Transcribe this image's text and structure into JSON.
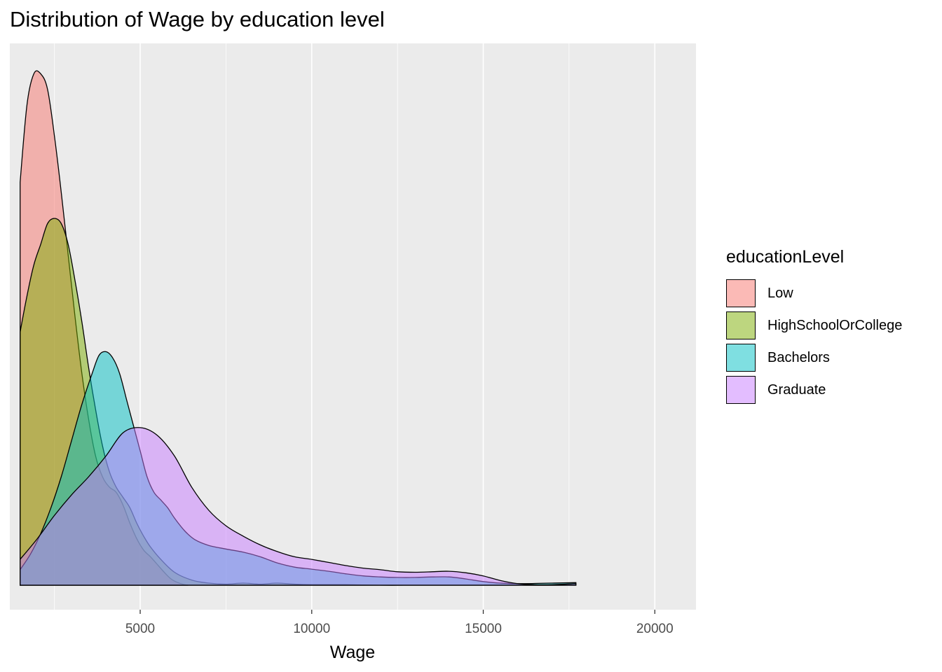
{
  "chart_data": {
    "type": "area",
    "title": "Distribution of Wage by education level",
    "xlabel": "Wage",
    "ylabel": "",
    "xlim": [
      1200,
      21200
    ],
    "ylim": [
      0,
      1
    ],
    "x_ticks": [
      5000,
      10000,
      15000,
      20000
    ],
    "x_tick_labels": [
      "5000",
      "10000",
      "15000",
      "20000"
    ],
    "y_tick_labels": [],
    "grid": true,
    "legend": {
      "title": "educationLevel",
      "position": "right"
    },
    "series": [
      {
        "name": "Low",
        "color": "#F8766D",
        "points": [
          [
            1500,
            0.78
          ],
          [
            1700,
            0.93
          ],
          [
            1900,
            0.99
          ],
          [
            2100,
            0.99
          ],
          [
            2300,
            0.96
          ],
          [
            2500,
            0.87
          ],
          [
            2700,
            0.76
          ],
          [
            2900,
            0.64
          ],
          [
            3100,
            0.52
          ],
          [
            3300,
            0.41
          ],
          [
            3500,
            0.32
          ],
          [
            3700,
            0.25
          ],
          [
            3900,
            0.21
          ],
          [
            4100,
            0.19
          ],
          [
            4300,
            0.18
          ],
          [
            4500,
            0.155
          ],
          [
            4700,
            0.12
          ],
          [
            4900,
            0.09
          ],
          [
            5100,
            0.068
          ],
          [
            5300,
            0.055
          ],
          [
            5500,
            0.04
          ],
          [
            5700,
            0.025
          ],
          [
            5900,
            0.012
          ],
          [
            6100,
            0.005
          ],
          [
            6300,
            0.001
          ],
          [
            6400,
            0
          ]
        ]
      },
      {
        "name": "HighSchoolOrCollege",
        "color": "#7CAE00",
        "points": [
          [
            1500,
            0.49
          ],
          [
            1700,
            0.56
          ],
          [
            1900,
            0.62
          ],
          [
            2100,
            0.66
          ],
          [
            2300,
            0.7
          ],
          [
            2500,
            0.71
          ],
          [
            2700,
            0.7
          ],
          [
            2900,
            0.66
          ],
          [
            3100,
            0.59
          ],
          [
            3300,
            0.51
          ],
          [
            3500,
            0.42
          ],
          [
            3700,
            0.34
          ],
          [
            3900,
            0.27
          ],
          [
            4100,
            0.22
          ],
          [
            4300,
            0.19
          ],
          [
            4500,
            0.17
          ],
          [
            4700,
            0.15
          ],
          [
            4900,
            0.12
          ],
          [
            5100,
            0.095
          ],
          [
            5300,
            0.074
          ],
          [
            5600,
            0.05
          ],
          [
            6000,
            0.025
          ],
          [
            6500,
            0.01
          ],
          [
            7000,
            0.004
          ],
          [
            7500,
            0.002
          ],
          [
            8000,
            0.004
          ],
          [
            8500,
            0.002
          ],
          [
            9000,
            0.004
          ],
          [
            9500,
            0.002
          ],
          [
            10000,
            0.001
          ],
          [
            11000,
            0.001
          ],
          [
            12000,
            0
          ],
          [
            13000,
            0
          ],
          [
            14000,
            0
          ],
          [
            15000,
            0
          ],
          [
            16000,
            0
          ],
          [
            17000,
            0
          ],
          [
            17700,
            0
          ]
        ]
      },
      {
        "name": "Bachelors",
        "color": "#00BFC4",
        "points": [
          [
            1500,
            0.03
          ],
          [
            1800,
            0.06
          ],
          [
            2100,
            0.1
          ],
          [
            2400,
            0.15
          ],
          [
            2700,
            0.21
          ],
          [
            3000,
            0.28
          ],
          [
            3300,
            0.35
          ],
          [
            3600,
            0.41
          ],
          [
            3800,
            0.445
          ],
          [
            4000,
            0.452
          ],
          [
            4200,
            0.44
          ],
          [
            4400,
            0.41
          ],
          [
            4600,
            0.36
          ],
          [
            4800,
            0.31
          ],
          [
            5000,
            0.26
          ],
          [
            5200,
            0.21
          ],
          [
            5400,
            0.18
          ],
          [
            5600,
            0.165
          ],
          [
            5800,
            0.15
          ],
          [
            6000,
            0.13
          ],
          [
            6300,
            0.105
          ],
          [
            6600,
            0.088
          ],
          [
            7000,
            0.077
          ],
          [
            7500,
            0.07
          ],
          [
            8000,
            0.064
          ],
          [
            8500,
            0.055
          ],
          [
            9000,
            0.043
          ],
          [
            9500,
            0.035
          ],
          [
            10000,
            0.031
          ],
          [
            10500,
            0.027
          ],
          [
            11000,
            0.022
          ],
          [
            11500,
            0.018
          ],
          [
            12000,
            0.016
          ],
          [
            12500,
            0.015
          ],
          [
            13000,
            0.015
          ],
          [
            13500,
            0.016
          ],
          [
            14000,
            0.016
          ],
          [
            14500,
            0.012
          ],
          [
            15000,
            0.007
          ],
          [
            15500,
            0.004
          ],
          [
            16000,
            0.003
          ],
          [
            17000,
            0.004
          ],
          [
            17700,
            0.005
          ]
        ]
      },
      {
        "name": "Graduate",
        "color": "#C77CFF",
        "points": [
          [
            1500,
            0.05
          ],
          [
            2000,
            0.09
          ],
          [
            2500,
            0.135
          ],
          [
            3000,
            0.175
          ],
          [
            3500,
            0.21
          ],
          [
            4000,
            0.25
          ],
          [
            4500,
            0.295
          ],
          [
            5000,
            0.305
          ],
          [
            5500,
            0.29
          ],
          [
            6000,
            0.25
          ],
          [
            6500,
            0.19
          ],
          [
            7000,
            0.145
          ],
          [
            7500,
            0.115
          ],
          [
            8000,
            0.095
          ],
          [
            8500,
            0.078
          ],
          [
            9000,
            0.065
          ],
          [
            9500,
            0.055
          ],
          [
            10000,
            0.05
          ],
          [
            10500,
            0.044
          ],
          [
            11000,
            0.038
          ],
          [
            11500,
            0.033
          ],
          [
            12000,
            0.03
          ],
          [
            12500,
            0.026
          ],
          [
            13000,
            0.025
          ],
          [
            13500,
            0.026
          ],
          [
            14000,
            0.027
          ],
          [
            14500,
            0.024
          ],
          [
            15000,
            0.018
          ],
          [
            15500,
            0.009
          ],
          [
            16000,
            0.003
          ],
          [
            16500,
            0.001
          ],
          [
            17000,
            0.001
          ],
          [
            17700,
            0.003
          ]
        ]
      }
    ]
  }
}
